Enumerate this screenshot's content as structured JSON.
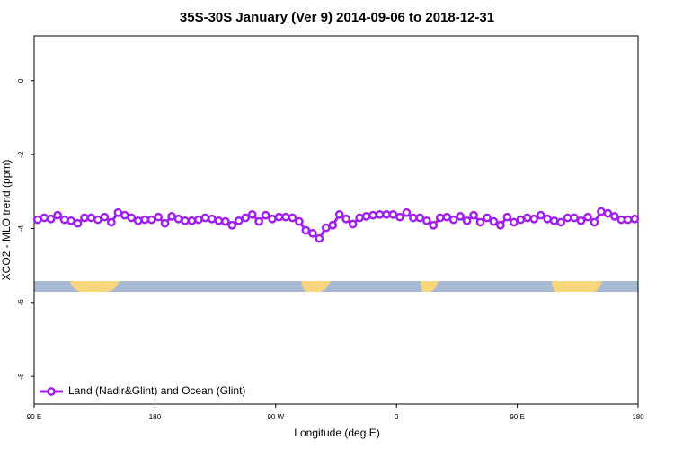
{
  "chart_data": {
    "type": "line",
    "title": "35S-30S January (Ver 9)   2014-09-06 to 2018-12-31",
    "x_label": "Longitude (deg E)",
    "y_label": "XCO2 - MLO trend (ppm)",
    "x": [
      92.5,
      97.5,
      102.5,
      107.5,
      112.5,
      117.5,
      122.5,
      127.5,
      132.5,
      137.5,
      142.5,
      147.5,
      152.5,
      157.5,
      162.5,
      167.5,
      172.5,
      177.5,
      182.5,
      187.5,
      192.5,
      197.5,
      202.5,
      207.5,
      212.5,
      217.5,
      222.5,
      227.5,
      232.5,
      237.5,
      242.5,
      247.5,
      252.5,
      257.5,
      262.5,
      267.5,
      272.5,
      277.5,
      282.5,
      287.5,
      292.5,
      297.5,
      302.5,
      307.5,
      312.5,
      317.5,
      322.5,
      327.5,
      332.5,
      337.5,
      342.5,
      347.5,
      352.5,
      357.5,
      362.5,
      367.5,
      372.5,
      377.5,
      382.5,
      387.5,
      392.5,
      397.5,
      402.5,
      407.5,
      412.5,
      417.5,
      422.5,
      427.5,
      432.5,
      437.5,
      442.5,
      447.5,
      452.5,
      457.5,
      462.5,
      467.5,
      472.5,
      477.5,
      482.5,
      487.5,
      492.5,
      497.5,
      502.5,
      507.5,
      512.5,
      517.5,
      522.5,
      527.5,
      532.5,
      537.5
    ],
    "series": [
      {
        "name": "Land (Nadir&Glint) and Ocean (Glint)",
        "color": "#a020f0",
        "values": [
          -3.76,
          -3.71,
          -3.74,
          -3.64,
          -3.76,
          -3.79,
          -3.86,
          -3.71,
          -3.71,
          -3.76,
          -3.69,
          -3.83,
          -3.57,
          -3.64,
          -3.71,
          -3.79,
          -3.76,
          -3.76,
          -3.69,
          -3.86,
          -3.67,
          -3.74,
          -3.79,
          -3.79,
          -3.76,
          -3.71,
          -3.74,
          -3.79,
          -3.81,
          -3.91,
          -3.79,
          -3.71,
          -3.62,
          -3.81,
          -3.64,
          -3.74,
          -3.69,
          -3.69,
          -3.71,
          -3.81,
          -4.05,
          -4.13,
          -4.27,
          -3.98,
          -3.91,
          -3.62,
          -3.74,
          -3.88,
          -3.71,
          -3.67,
          -3.64,
          -3.62,
          -3.62,
          -3.62,
          -3.69,
          -3.57,
          -3.71,
          -3.71,
          -3.79,
          -3.91,
          -3.71,
          -3.69,
          -3.76,
          -3.67,
          -3.79,
          -3.64,
          -3.83,
          -3.71,
          -3.81,
          -3.91,
          -3.69,
          -3.83,
          -3.76,
          -3.71,
          -3.74,
          -3.64,
          -3.74,
          -3.79,
          -3.83,
          -3.71,
          -3.71,
          -3.79,
          -3.69,
          -3.83,
          -3.54,
          -3.59,
          -3.67,
          -3.76,
          -3.76,
          -3.74
        ]
      }
    ],
    "xlim": [
      90,
      540
    ],
    "xticks": [
      {
        "value": 90,
        "label": "90 E"
      },
      180,
      {
        "value": 270,
        "label": "90 W"
      },
      {
        "value": 360,
        "label": "0"
      },
      {
        "value": 450,
        "label": "90 E"
      },
      {
        "value": 540,
        "label": "180"
      }
    ],
    "ylim": [
      -8.75,
      1.21
    ],
    "yticks": [
      -8,
      -6,
      -4,
      -2,
      0
    ],
    "legend": "bottomleft"
  }
}
